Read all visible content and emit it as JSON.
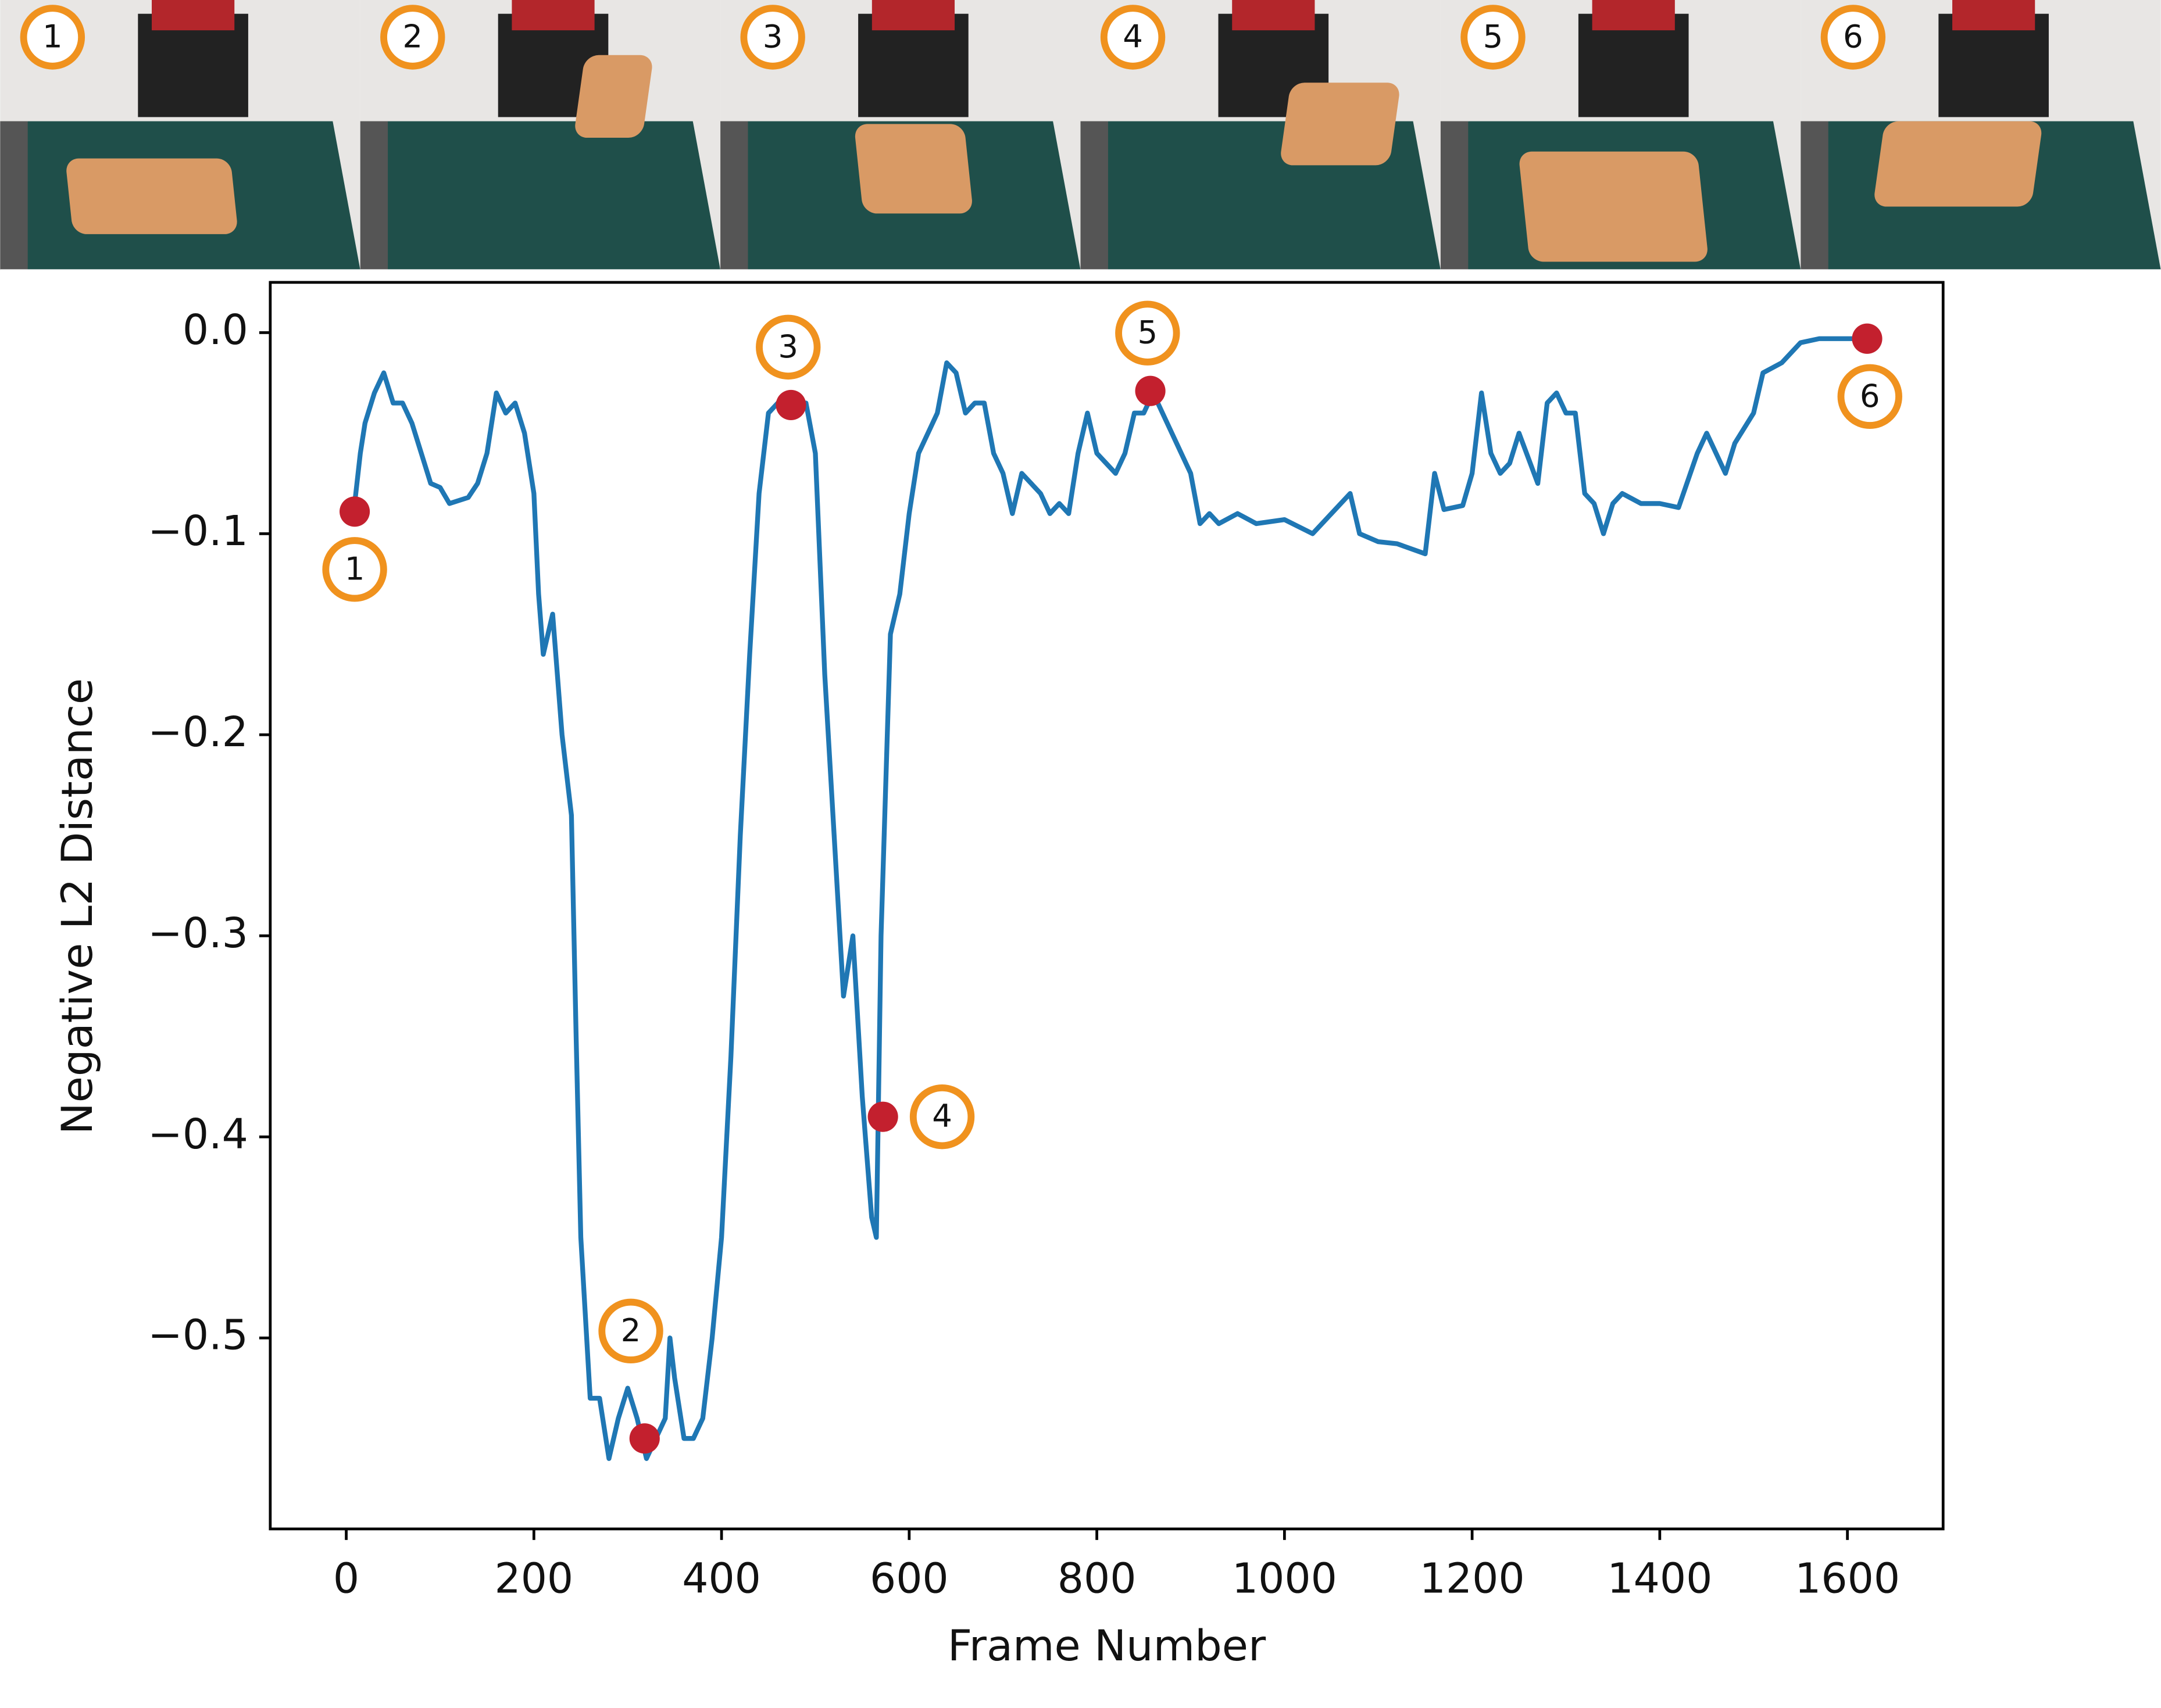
{
  "frames": [
    "1",
    "2",
    "3",
    "4",
    "5",
    "6"
  ],
  "chart_data": {
    "type": "line",
    "xlabel": "Frame Number",
    "ylabel": "Negative L2 Distance",
    "color": "#1f77b4",
    "x": [
      8,
      15,
      20,
      30,
      40,
      50,
      60,
      70,
      80,
      90,
      100,
      110,
      130,
      140,
      150,
      160,
      170,
      180,
      190,
      200,
      205,
      210,
      220,
      230,
      240,
      245,
      250,
      260,
      270,
      280,
      290,
      300,
      310,
      320,
      330,
      340,
      345,
      350,
      360,
      370,
      380,
      390,
      400,
      410,
      420,
      430,
      440,
      450,
      460,
      470,
      480,
      490,
      500,
      510,
      520,
      530,
      540,
      550,
      560,
      565,
      570,
      580,
      590,
      600,
      610,
      620,
      630,
      640,
      650,
      660,
      670,
      680,
      690,
      700,
      710,
      720,
      730,
      740,
      750,
      760,
      770,
      780,
      790,
      800,
      810,
      820,
      830,
      840,
      850,
      860,
      870,
      880,
      890,
      900,
      910,
      920,
      930,
      950,
      970,
      1000,
      1030,
      1050,
      1070,
      1080,
      1100,
      1120,
      1150,
      1160,
      1170,
      1190,
      1200,
      1210,
      1220,
      1230,
      1240,
      1250,
      1270,
      1280,
      1290,
      1300,
      1310,
      1320,
      1330,
      1340,
      1350,
      1360,
      1380,
      1400,
      1420,
      1440,
      1450,
      1470,
      1480,
      1500,
      1510,
      1530,
      1550,
      1570,
      1600,
      1620
    ],
    "values": [
      -0.089,
      -0.06,
      -0.045,
      -0.03,
      -0.02,
      -0.035,
      -0.035,
      -0.045,
      -0.06,
      -0.075,
      -0.077,
      -0.085,
      -0.082,
      -0.075,
      -0.06,
      -0.03,
      -0.04,
      -0.035,
      -0.05,
      -0.08,
      -0.13,
      -0.16,
      -0.14,
      -0.2,
      -0.24,
      -0.35,
      -0.45,
      -0.53,
      -0.53,
      -0.56,
      -0.54,
      -0.525,
      -0.54,
      -0.56,
      -0.55,
      -0.54,
      -0.5,
      -0.52,
      -0.55,
      -0.55,
      -0.54,
      -0.5,
      -0.45,
      -0.36,
      -0.25,
      -0.16,
      -0.08,
      -0.04,
      -0.035,
      -0.03,
      -0.035,
      -0.035,
      -0.06,
      -0.17,
      -0.25,
      -0.33,
      -0.3,
      -0.38,
      -0.44,
      -0.45,
      -0.3,
      -0.15,
      -0.13,
      -0.09,
      -0.06,
      -0.05,
      -0.04,
      -0.015,
      -0.02,
      -0.04,
      -0.035,
      -0.035,
      -0.06,
      -0.07,
      -0.09,
      -0.07,
      -0.075,
      -0.08,
      -0.09,
      -0.085,
      -0.09,
      -0.06,
      -0.04,
      -0.06,
      -0.065,
      -0.07,
      -0.06,
      -0.04,
      -0.04,
      -0.03,
      -0.04,
      -0.05,
      -0.06,
      -0.07,
      -0.095,
      -0.09,
      -0.095,
      -0.09,
      -0.095,
      -0.093,
      -0.1,
      -0.09,
      -0.08,
      -0.1,
      -0.104,
      -0.105,
      -0.11,
      -0.07,
      -0.088,
      -0.086,
      -0.07,
      -0.03,
      -0.06,
      -0.07,
      -0.065,
      -0.05,
      -0.075,
      -0.035,
      -0.03,
      -0.04,
      -0.04,
      -0.08,
      -0.085,
      -0.1,
      -0.085,
      -0.08,
      -0.085,
      -0.085,
      -0.087,
      -0.06,
      -0.05,
      -0.07,
      -0.055,
      -0.04,
      -0.02,
      -0.015,
      -0.005,
      -0.003,
      -0.003,
      -0.003
    ],
    "highlights": {
      "color": "#c3202e",
      "x": [
        9,
        318,
        474,
        572,
        857,
        1621
      ],
      "values": [
        -0.089,
        -0.55,
        -0.036,
        -0.39,
        -0.029,
        -0.003
      ],
      "labels": [
        "1",
        "2",
        "3",
        "4",
        "5",
        "6"
      ]
    },
    "xlim": [
      -81,
      1702
    ],
    "ylim": [
      -0.595,
      0.025
    ],
    "xticks": [
      0,
      200,
      400,
      600,
      800,
      1000,
      1200,
      1400,
      1600
    ],
    "yticks": [
      {
        "value": 0,
        "label": "0.0"
      },
      {
        "value": -0.1,
        "label": "−0.1"
      },
      {
        "value": -0.2,
        "label": "−0.2"
      },
      {
        "value": -0.3,
        "label": "−0.3"
      },
      {
        "value": -0.4,
        "label": "−0.4"
      },
      {
        "value": -0.5,
        "label": "−0.5"
      }
    ]
  }
}
